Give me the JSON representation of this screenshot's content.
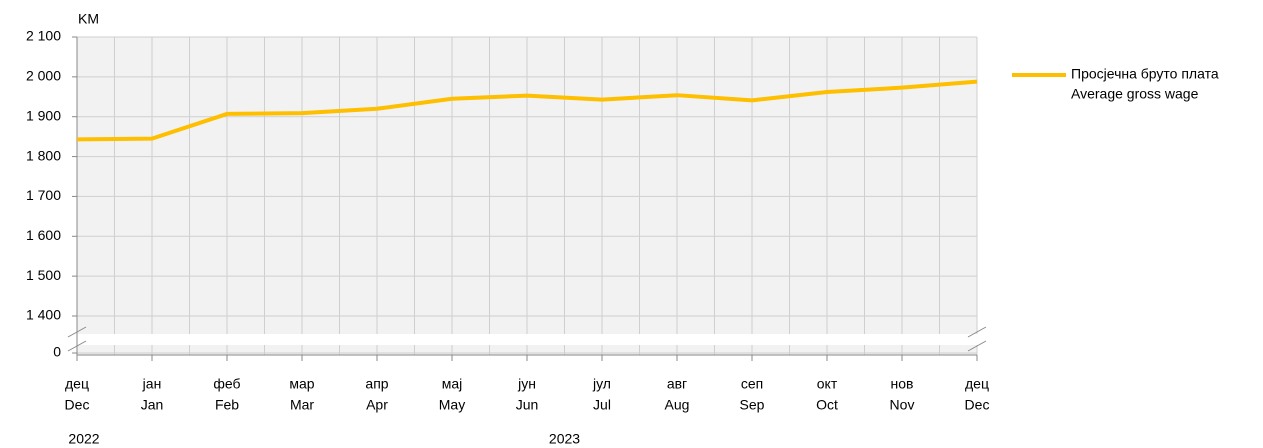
{
  "chart_data": {
    "type": "line",
    "y_unit": "KM",
    "categories": [
      "дец",
      "јан",
      "феб",
      "мар",
      "апр",
      "мај",
      "јун",
      "јул",
      "авг",
      "сеп",
      "окт",
      "нов",
      "дец"
    ],
    "categories_en": [
      "Dec",
      "Jan",
      "Feb",
      "Mar",
      "Apr",
      "May",
      "Jun",
      "Jul",
      "Aug",
      "Sep",
      "Oct",
      "Nov",
      "Dec"
    ],
    "years": [
      {
        "label": "2022",
        "start": 0
      },
      {
        "label": "2023",
        "start": 1
      }
    ],
    "series": [
      {
        "name": [
          "Просјечна бруто плата",
          "Average gross wage"
        ],
        "color": "#fdbf00",
        "values": [
          1843,
          1845,
          1907,
          1909,
          1920,
          1945,
          1953,
          1943,
          1954,
          1941,
          1962,
          1973,
          1988
        ]
      }
    ],
    "ylim": [
      1400,
      2100
    ],
    "axis_break": true,
    "yticks": [
      0,
      {
        "value": 1400,
        "label": "1 400"
      },
      {
        "value": 1500,
        "label": "1 500"
      },
      {
        "value": 1600,
        "label": "1 600"
      },
      {
        "value": 1700,
        "label": "1 700"
      },
      {
        "value": 1800,
        "label": "1 800"
      },
      {
        "value": 1900,
        "label": "1 900"
      },
      {
        "value": 2000,
        "label": "2 000"
      },
      {
        "value": 2100,
        "label": "2 100"
      }
    ],
    "grid": true,
    "legend": "right"
  }
}
